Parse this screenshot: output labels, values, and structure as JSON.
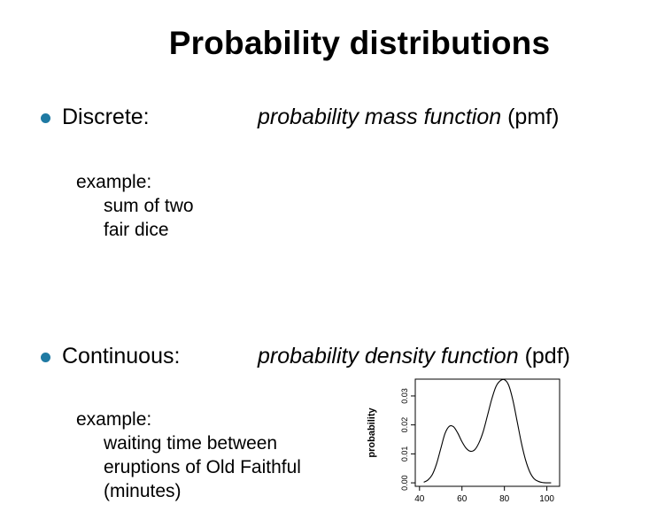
{
  "slide": {
    "title": "Probability distributions"
  },
  "bullets": [
    {
      "label": "Discrete:",
      "desc_italic": "probability mass function",
      "desc_suffix": " (pmf)",
      "example_heading": "example:",
      "example_lines": [
        "sum of two",
        "fair dice"
      ]
    },
    {
      "label": "Continuous:",
      "desc_italic": "probability density function",
      "desc_suffix": " (pdf)",
      "example_heading": "example:",
      "example_lines": [
        "waiting time between",
        "eruptions of Old Faithful",
        "(minutes)"
      ]
    }
  ],
  "colors": {
    "bullet": "#1f7aa3",
    "text": "#000000"
  },
  "chart_data": {
    "type": "line",
    "title": "",
    "xlabel": "",
    "ylabel": "probability",
    "xlim": [
      38,
      106
    ],
    "ylim": [
      -0.0012,
      0.0358
    ],
    "xticks": [
      40,
      60,
      80,
      100
    ],
    "xtick_labels": [
      "40",
      "60",
      "80",
      "100"
    ],
    "yticks": [
      0.0,
      0.01,
      0.02,
      0.03
    ],
    "ytick_labels": [
      "0.00",
      "0.01",
      "0.02",
      "0.03"
    ],
    "grid": false,
    "series": [
      {
        "x": [
          42,
          44,
          46,
          48,
          50,
          52,
          54,
          56,
          58,
          60,
          62,
          64,
          66,
          68,
          70,
          72,
          74,
          76,
          78,
          80,
          82,
          84,
          86,
          88,
          90,
          92,
          94,
          96,
          98,
          100,
          102
        ],
        "values": [
          0.0002,
          0.001,
          0.0028,
          0.0065,
          0.0118,
          0.017,
          0.0195,
          0.0194,
          0.0172,
          0.0142,
          0.0119,
          0.0109,
          0.0114,
          0.0138,
          0.0177,
          0.0232,
          0.0288,
          0.0332,
          0.0352,
          0.0356,
          0.0337,
          0.0285,
          0.0212,
          0.0138,
          0.0078,
          0.0037,
          0.0014,
          0.0005,
          0.0001,
          0.0,
          0.0
        ]
      }
    ]
  }
}
